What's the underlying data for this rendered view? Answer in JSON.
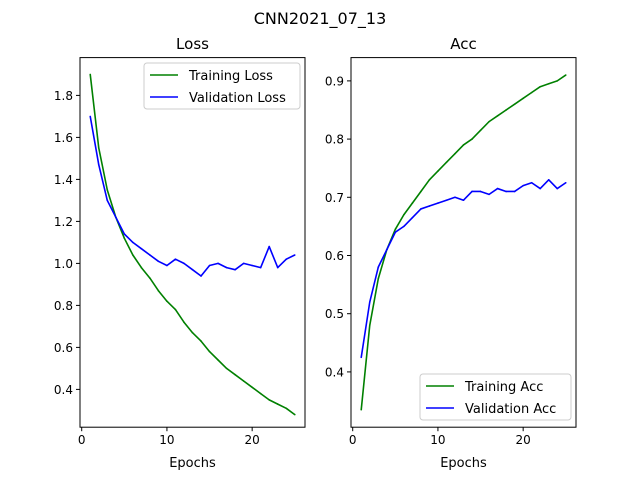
{
  "suptitle": "CNN2021_07_13",
  "chart_data": [
    {
      "type": "line",
      "title": "Loss",
      "xlabel": "Epochs",
      "ylabel": "",
      "xlim": [
        -0.2,
        26.2
      ],
      "ylim": [
        0.22,
        1.98
      ],
      "xticks": [
        0,
        10,
        20
      ],
      "yticks": [
        0.4,
        0.6,
        0.8,
        1.0,
        1.2,
        1.4,
        1.6,
        1.8
      ],
      "ytick_labels": [
        "0.4",
        "0.6",
        "0.8",
        "1.0",
        "1.2",
        "1.4",
        "1.6",
        "1.8"
      ],
      "legend_position": "upper-right",
      "x": [
        1,
        2,
        3,
        4,
        5,
        6,
        7,
        8,
        9,
        10,
        11,
        12,
        13,
        14,
        15,
        16,
        17,
        18,
        19,
        20,
        21,
        22,
        23,
        24,
        25
      ],
      "series": [
        {
          "name": "Training Loss",
          "color": "#008000",
          "values": [
            1.9,
            1.55,
            1.35,
            1.22,
            1.12,
            1.04,
            0.98,
            0.93,
            0.87,
            0.82,
            0.78,
            0.72,
            0.67,
            0.63,
            0.58,
            0.54,
            0.5,
            0.47,
            0.44,
            0.41,
            0.38,
            0.35,
            0.33,
            0.31,
            0.28
          ]
        },
        {
          "name": "Validation Loss",
          "color": "#0000ff",
          "values": [
            1.7,
            1.47,
            1.3,
            1.22,
            1.14,
            1.1,
            1.07,
            1.04,
            1.01,
            0.99,
            1.02,
            1.0,
            0.97,
            0.94,
            0.99,
            1.0,
            0.98,
            0.97,
            1.0,
            0.99,
            0.98,
            1.08,
            0.98,
            1.02,
            1.04
          ]
        }
      ]
    },
    {
      "type": "line",
      "title": "Acc",
      "xlabel": "Epochs",
      "ylabel": "",
      "xlim": [
        -0.2,
        26.2
      ],
      "ylim": [
        0.305,
        0.94
      ],
      "xticks": [
        0,
        10,
        20
      ],
      "yticks": [
        0.4,
        0.5,
        0.6,
        0.7,
        0.8,
        0.9
      ],
      "ytick_labels": [
        "0.4",
        "0.5",
        "0.6",
        "0.7",
        "0.8",
        "0.9"
      ],
      "legend_position": "lower-right",
      "x": [
        1,
        2,
        3,
        4,
        5,
        6,
        7,
        8,
        9,
        10,
        11,
        12,
        13,
        14,
        15,
        16,
        17,
        18,
        19,
        20,
        21,
        22,
        23,
        24,
        25
      ],
      "series": [
        {
          "name": "Training Acc",
          "color": "#008000",
          "values": [
            0.335,
            0.48,
            0.56,
            0.61,
            0.645,
            0.67,
            0.69,
            0.71,
            0.73,
            0.745,
            0.76,
            0.775,
            0.79,
            0.8,
            0.815,
            0.83,
            0.84,
            0.85,
            0.86,
            0.87,
            0.88,
            0.89,
            0.895,
            0.9,
            0.91
          ]
        },
        {
          "name": "Validation Acc",
          "color": "#0000ff",
          "values": [
            0.425,
            0.52,
            0.58,
            0.61,
            0.64,
            0.65,
            0.665,
            0.68,
            0.685,
            0.69,
            0.695,
            0.7,
            0.695,
            0.71,
            0.71,
            0.705,
            0.715,
            0.71,
            0.71,
            0.72,
            0.725,
            0.715,
            0.73,
            0.715,
            0.725
          ]
        }
      ]
    }
  ]
}
